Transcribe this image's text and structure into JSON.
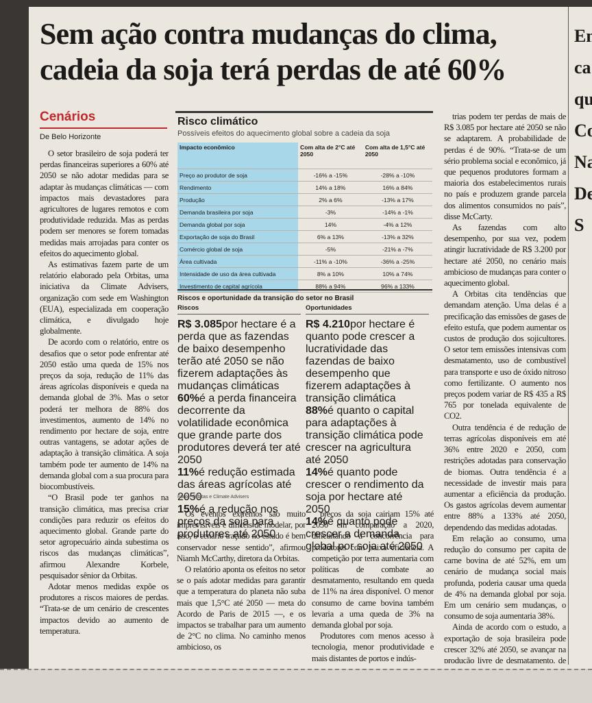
{
  "headline": [
    "Sem ação contra mudanças do clima,",
    "cadeia da soja terá perdas de até 60%"
  ],
  "section": "Cenários",
  "byline": "De Belo Horizonte",
  "columns": {
    "left": [
      "O setor brasileiro de soja poderá ter perdas financeiras superiores a 60% até 2050 se não adotar medidas para se adaptar às mudanças climáticas — com impactos mais devastadores para agricultores de lugares remotos e com produtividade reduzida. Mas as perdas podem ser menores se forem tomadas medidas mais arrojadas para conter os efeitos do aquecimento global.",
      "As estimativas fazem parte de um relatório elaborado pela Orbitas, uma iniciativa da Climate Advisers, organização com sede em Washington (EUA), especializada em cooperação climática, e divulgado hoje globalmente.",
      "De acordo com o relatório, entre os desafios que o setor pode enfrentar até 2050 estão uma queda de 15% nos preços da soja, redução de 11% das áreas agrícolas disponíveis e queda na demanda global de 3%. Mas o setor poderá ter melhora de 88% dos investimentos, aumento de 14% no rendimento por hectare de soja, entre outras vantagens, se adotar ações de adaptação à transição climática. A soja também pode ter aumento de 14% na demanda global com a sua procura para biocombustíveis.",
      "“O Brasil pode ter ganhos na transição climática, mas precisa criar condições para reduzir os efeitos do aquecimento global. Grande parte do setor agropecuário ainda subestima os riscos das mudanças climáticas”, afirmou Alexandre Korbele, pesquisador sênior da Orbitas.",
      "Adotar menos medidas expõe os produtores a riscos maiores de perdas. “Trata-se de um cenário de crescentes impactos devido ao aumento de temperatura."
    ],
    "middle_1": [
      "Os eventos extremos são muito imprevisíveis e difíceis de modelar, por isso, o cenário traçado no estudo é bem conservador nesse sentido”, afirmou Niamh McCarthy, diretora da Orbitas.",
      "O relatório aponta os efeitos no setor se o país adotar medidas para garantir que a temperatura do planeta não suba mais que 1,5°C até 2050 — meta do Acordo de Paris de 2015 —, e os impactos se trabalhar para um aumento de 2°C no clima. No caminho menos ambicioso, os"
    ],
    "middle_2": [
      "preços da soja cairiam 15% até 2050 em comparação a 2020, dificultando a concorrência para produtores com baixa eficiência. A competição por terra aumentaria com políticas de combate ao desmatamento, resultando em queda de 11% na área disponível. O menor consumo de carne bovina também levaria a uma queda de 3% na demanda global por soja.",
      "Produtores com menos acesso à tecnologia, menor produtividade e mais distantes de portos e indús-"
    ],
    "right": [
      "trias podem ter perdas de mais de R$ 3.085 por hectare até 2050 se não se adaptarem. A probabilidade de perdas é de 90%. “Trata-se de um sério problema social e econômico, já que pequenos produtores formam a maioria dos estabelecimentos rurais no país e produzem grande parcela dos alimentos consumidos no país”, disse McCarty.",
      "As fazendas com alto desempenho, por sua vez, podem atingir lucratividade de R$ 3.200 por hectare até 2050, no cenário mais ambicioso de mudanças para conter o aquecimento global.",
      "A Orbitas cita tendências que demandam atenção. Uma delas é a precificação das emissões de gases de efeito estufa, que podem aumentar os custos de produção dos sojicultores. O setor tem emissões intensivas com desmatamento, uso de combustível para transporte e uso de óxido nitroso como fertilizante. O aumento nos preços podem variar de R$ 435 a R$ 765 por tonelada equivalente de CO2.",
      "Outra tendência é de redução de terras agrícolas disponíveis em até 36% entre 2020 e 2050, com restrições adotadas para conservação de biomas. Outra tendência é a necessidade de investir mais para aumentar a eficiência da produção. Os gastos agrícolas devem aumentar entre 88% a 133% até 2050, dependendo das medidas adotadas.",
      "Em relação ao consumo, uma redução do consumo per capita de carne bovina de até 52%, em um cenário de mudança social mais profunda, poderia causar uma queda de 4% na demanda global por soja. Em um cenário sem mudanças, o consumo de soja aumentaria 38%.",
      "Ainda de acordo com o estudo, a exportação de soja brasileira pode crescer 32% até 2050, se avançar na produção livre de desmatamento, de baixa emissão e alto rendimento. (CB)"
    ]
  },
  "infographic": {
    "title": "Risco climático",
    "subtitle": "Possíveis efeitos do aquecimento global sobre a cadeia da soja",
    "table": {
      "header": [
        "Impacto econômico",
        "Com alta de 2°C até 2050",
        "Com alta de 1,5°C até 2050"
      ],
      "rows": [
        [
          "Preço ao produtor de soja",
          "-16% a -15%",
          "-28% a -10%"
        ],
        [
          "Rendimento",
          "14% a 18%",
          "16% a 84%"
        ],
        [
          "Produção",
          "2% a 6%",
          "-13% a 17%"
        ],
        [
          "Demanda brasileira por soja",
          "-3%",
          "-14% a -1%"
        ],
        [
          "Demanda global por soja",
          "14%",
          "-4% a 12%"
        ],
        [
          "Exportação de soja do Brasil",
          "6% a 13%",
          "-13% a 32%"
        ],
        [
          "Comércio global de soja",
          "-5%",
          "-21% a -7%"
        ],
        [
          "Área cultivada",
          "-11% a -10%",
          "-36% a -25%"
        ],
        [
          "Intensidade de uso da área cultivada",
          "8% a 10%",
          "10% a 74%"
        ],
        [
          "Investimento de capital agrícola",
          "88% a 94%",
          "96% a 133%"
        ]
      ]
    },
    "section_title": "Riscos e oportunidade da transição do setor no Brasil",
    "risks": {
      "heading": "Riscos",
      "items": [
        {
          "figure": "R$ 3.085",
          "text": "por hectare é a perda que as fazendas de baixo desempenho terão até 2050 se não fizerem adaptações às mudanças climáticas"
        },
        {
          "figure": "60%",
          "text": "é a perda financeira decorrente da volatilidade econômica que grande parte dos produtores deverá ter até 2050"
        },
        {
          "figure": "11%",
          "text": "é redução estimada das áreas agrícolas até 2050"
        },
        {
          "figure": "15%",
          "text": "é a redução nos preços da soja para produtores até 2050"
        }
      ]
    },
    "opportunities": {
      "heading": "Oportunidades",
      "items": [
        {
          "figure": "R$ 4.210",
          "text": "por hectare é quanto pode crescer a lucratividade das fazendas de baixo desempenho que fizerem adaptações à transição climática"
        },
        {
          "figure": "88%",
          "text": "é quanto o capital para adaptações à transição climática pode crescer na agricultura até 2050"
        },
        {
          "figure": "14%",
          "text": "é quanto pode crescer o rendimento da soja por hectare até 2050"
        },
        {
          "figure": "14%",
          "text": "é quanto pode crescer a demanda global por soja até 2050"
        }
      ]
    },
    "source": "Fonte: Orbitas e Climate Advisers"
  },
  "edge_fragments": [
    "Em",
    "ca",
    "qu",
    "Co",
    "Naya",
    "De S"
  ]
}
